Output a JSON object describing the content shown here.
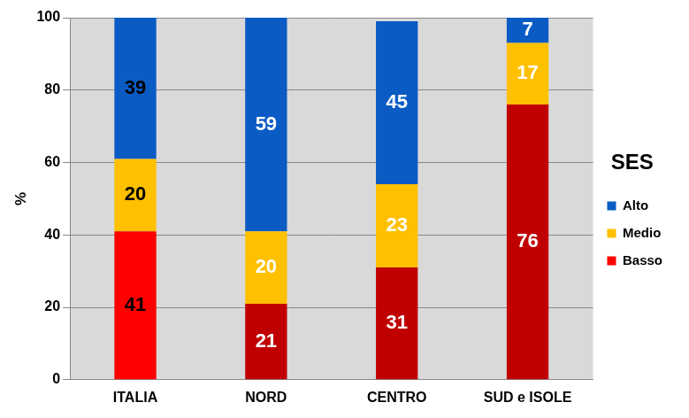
{
  "chart_data": {
    "type": "bar",
    "stacked": true,
    "categories": [
      "ITALIA",
      "NORD",
      "CENTRO",
      "SUD e ISOLE"
    ],
    "series": [
      {
        "name": "Basso",
        "color": "#c00000",
        "colors": [
          "#ff0000",
          "#c00000",
          "#c00000",
          "#c00000"
        ],
        "values": [
          41,
          21,
          31,
          76
        ]
      },
      {
        "name": "Medio",
        "color": "#ffc000",
        "values": [
          20,
          20,
          23,
          17
        ]
      },
      {
        "name": "Alto",
        "color": "#0a5bc4",
        "values": [
          39,
          59,
          45,
          7
        ]
      }
    ],
    "y_label": "%",
    "legend_title": "SES",
    "legend": "right",
    "ylim": [
      0,
      100
    ],
    "yticks": [
      0,
      20,
      40,
      60,
      80,
      100
    ],
    "grid": true,
    "data_labels": true
  }
}
